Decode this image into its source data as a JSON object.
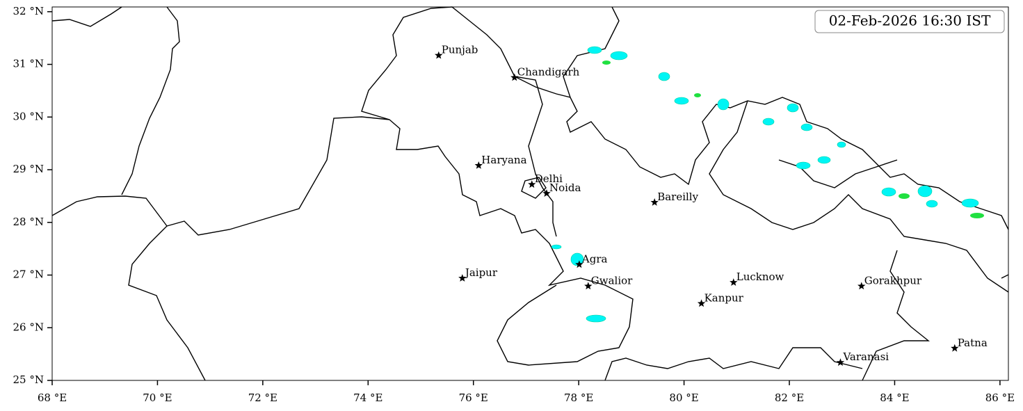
{
  "map": {
    "timestamp": "02-Feb-2026 16:30 IST",
    "xlim": [
      68,
      86.16
    ],
    "ylim": [
      25,
      32.09
    ],
    "xticks": [
      {
        "value": 68,
        "label": "68 °E"
      },
      {
        "value": 70,
        "label": "70 °E"
      },
      {
        "value": 72,
        "label": "72 °E"
      },
      {
        "value": 74,
        "label": "74 °E"
      },
      {
        "value": 76,
        "label": "76 °E"
      },
      {
        "value": 78,
        "label": "78 °E"
      },
      {
        "value": 80,
        "label": "80 °E"
      },
      {
        "value": 82,
        "label": "82 °E"
      },
      {
        "value": 84,
        "label": "84 °E"
      },
      {
        "value": 86,
        "label": "86 °E"
      }
    ],
    "yticks": [
      {
        "value": 25,
        "label": "25 °N"
      },
      {
        "value": 26,
        "label": "26 °N"
      },
      {
        "value": 27,
        "label": "27 °N"
      },
      {
        "value": 28,
        "label": "28 °N"
      },
      {
        "value": 29,
        "label": "29 °N"
      },
      {
        "value": 30,
        "label": "30 °N"
      },
      {
        "value": 31,
        "label": "31 °N"
      },
      {
        "value": 32,
        "label": "32 °N"
      }
    ],
    "cities": [
      {
        "name": "Punjab",
        "lon": 75.34,
        "lat": 31.17
      },
      {
        "name": "Chandigarh",
        "lon": 76.78,
        "lat": 30.75
      },
      {
        "name": "Haryana",
        "lon": 76.1,
        "lat": 29.08
      },
      {
        "name": "Delhi",
        "lon": 77.11,
        "lat": 28.72
      },
      {
        "name": "Noida",
        "lon": 77.39,
        "lat": 28.55
      },
      {
        "name": "Bareilly",
        "lon": 79.44,
        "lat": 28.38
      },
      {
        "name": "Agra",
        "lon": 78.01,
        "lat": 27.2
      },
      {
        "name": "Jaipur",
        "lon": 75.79,
        "lat": 26.94
      },
      {
        "name": "Gwalior",
        "lon": 78.18,
        "lat": 26.79
      },
      {
        "name": "Lucknow",
        "lon": 80.94,
        "lat": 26.86
      },
      {
        "name": "Kanpur",
        "lon": 80.33,
        "lat": 26.46
      },
      {
        "name": "Gorakhpur",
        "lon": 83.37,
        "lat": 26.79
      },
      {
        "name": "Varanasi",
        "lon": 82.97,
        "lat": 25.34
      },
      {
        "name": "Patna",
        "lon": 85.14,
        "lat": 25.61
      }
    ]
  }
}
